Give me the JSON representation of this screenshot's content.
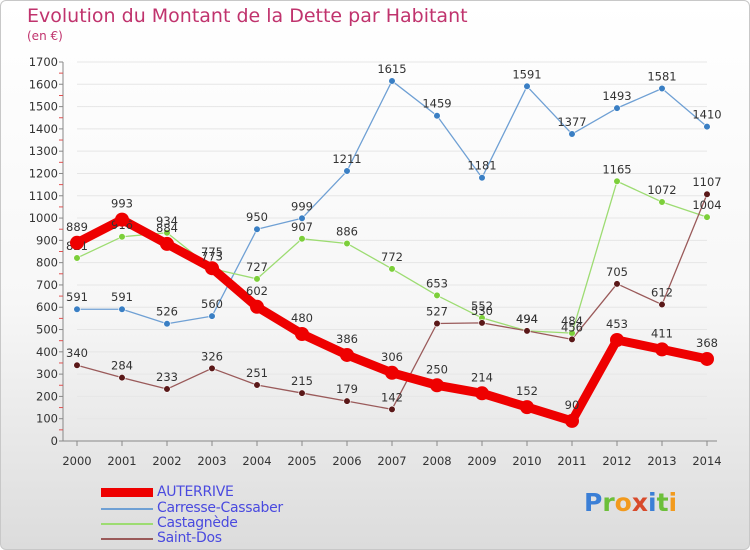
{
  "colors": {
    "title": "#c0336d",
    "axis_text": "#333333",
    "grid": "#e6e6e6",
    "legend_text": "#4a4adf"
  },
  "logo": {
    "text": "Proxiti",
    "letters": [
      {
        "ch": "P",
        "color": "#3b7fd6"
      },
      {
        "ch": "r",
        "color": "#6cbf3a"
      },
      {
        "ch": "o",
        "color": "#f29a1d"
      },
      {
        "ch": "x",
        "color": "#d84a2b"
      },
      {
        "ch": "i",
        "color": "#3b7fd6"
      },
      {
        "ch": "t",
        "color": "#6cbf3a"
      },
      {
        "ch": "i",
        "color": "#f29a1d"
      }
    ]
  },
  "chart_data": {
    "type": "line",
    "title": "Evolution du Montant de la Dette par Habitant",
    "subtitle": "(en €)",
    "xlabel": "",
    "ylabel": "",
    "ylim": [
      0,
      1700
    ],
    "yticks": [
      0,
      100,
      200,
      300,
      400,
      500,
      600,
      700,
      800,
      900,
      1000,
      1100,
      1200,
      1300,
      1400,
      1500,
      1600,
      1700
    ],
    "grid": true,
    "legend_position": "bottom-left",
    "x": [
      "2000",
      "2001",
      "2002",
      "2003",
      "2004",
      "2005",
      "2006",
      "2007",
      "2008",
      "2009",
      "2010",
      "2011",
      "2012",
      "2013",
      "2014"
    ],
    "series": [
      {
        "name": "Carresse-Cassaber",
        "color": "#6fa0d4",
        "marker": "#3a7fc4",
        "values": [
          591,
          591,
          526,
          560,
          950,
          999,
          1211,
          1615,
          1459,
          1181,
          1591,
          1377,
          1493,
          1581,
          1410
        ],
        "labels": [
          "591",
          "591",
          "526",
          "560",
          "950",
          "999",
          "1211",
          "1615",
          "1459",
          "1181",
          "1591",
          "1377",
          "1493",
          "1581",
          "1410"
        ]
      },
      {
        "name": "Castagnède",
        "color": "#9ddc72",
        "marker": "#7ccf3a",
        "values": [
          821,
          916,
          934,
          773,
          727,
          907,
          886,
          772,
          653,
          552,
          494,
          484,
          1165,
          1072,
          1004
        ],
        "labels": [
          "821",
          "916",
          "934",
          "773",
          "727",
          "907",
          "886",
          "772",
          "653",
          "552",
          "494",
          "484",
          "1165",
          "1072",
          "1004"
        ]
      },
      {
        "name": "Saint-Dos",
        "color": "#9a5a5a",
        "marker": "#5a1818",
        "values": [
          340,
          284,
          233,
          326,
          251,
          215,
          179,
          142,
          527,
          530,
          494,
          456,
          705,
          612,
          1107
        ],
        "labels": [
          "340",
          "284",
          "233",
          "326",
          "251",
          "215",
          "179",
          "142",
          "527",
          "530",
          "494",
          "456",
          "705",
          "612",
          "1107"
        ]
      },
      {
        "name": "AUTERRIVE",
        "color": "#ee0000",
        "marker": "#ee0000",
        "values": [
          889,
          993,
          884,
          775,
          602,
          480,
          386,
          306,
          250,
          214,
          152,
          90,
          453,
          411,
          368
        ],
        "labels": [
          "889",
          "993",
          "884",
          "775",
          "602",
          "480",
          "386",
          "306",
          "250",
          "214",
          "152",
          "90",
          "453",
          "411",
          "368"
        ]
      }
    ],
    "legend": [
      "AUTERRIVE",
      "Carresse-Cassaber",
      "Castagnède",
      "Saint-Dos"
    ]
  }
}
